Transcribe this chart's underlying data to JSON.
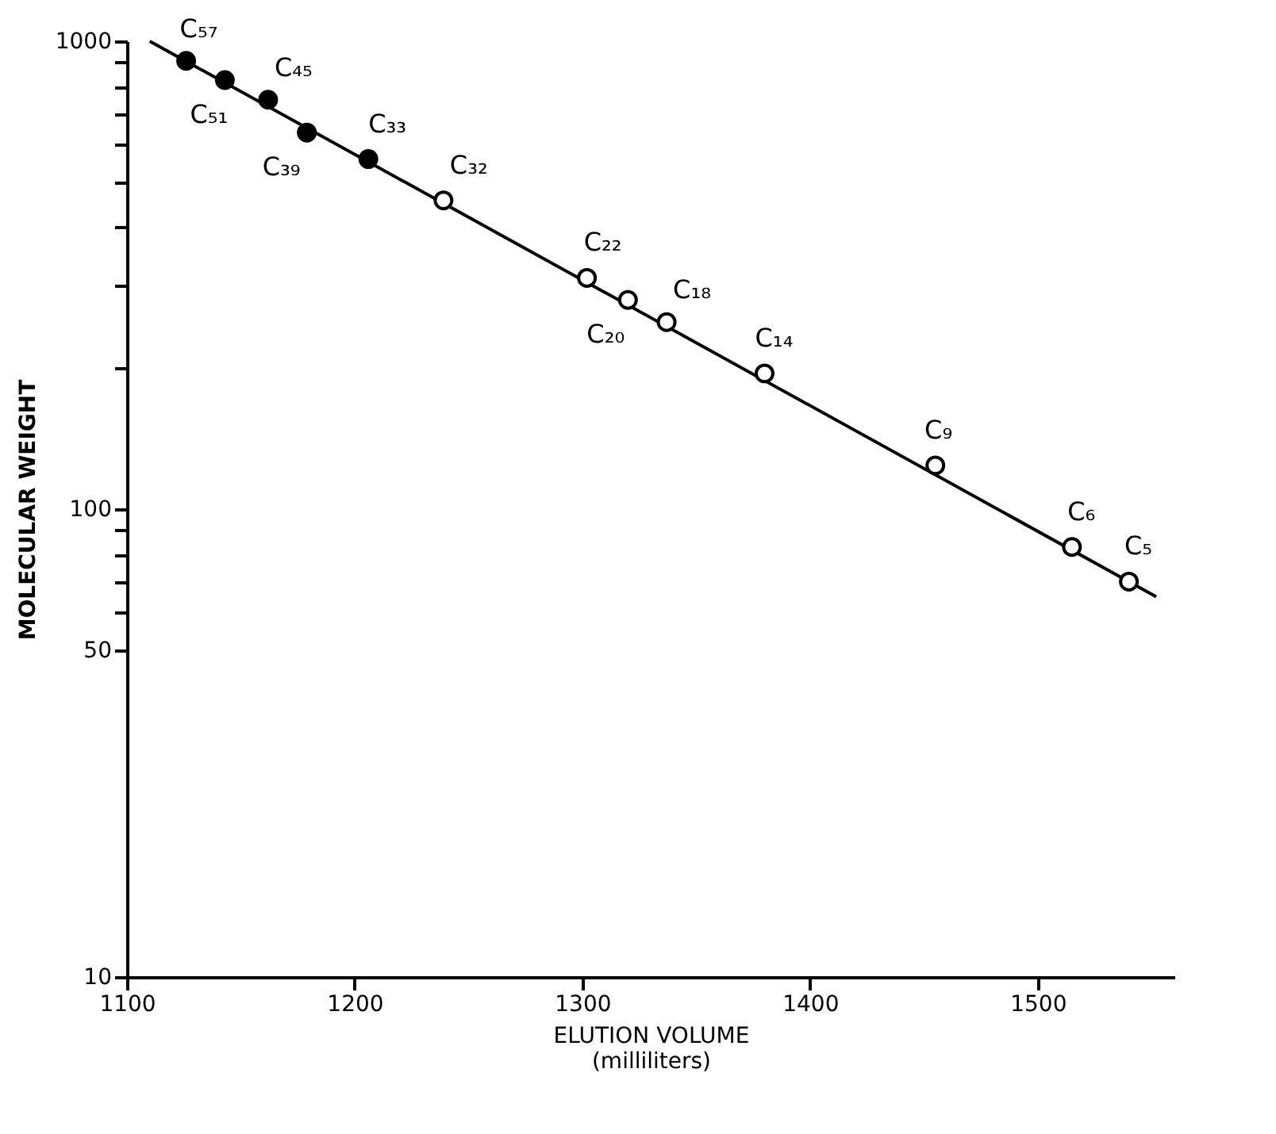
{
  "chart_data": {
    "type": "scatter",
    "xlabel": "ELUTION VOLUME\n(milliliters)",
    "ylabel": "MOLECULAR WEIGHT",
    "log": "y",
    "grid": false,
    "marker": "circle",
    "xlim": [
      1100,
      1560
    ],
    "xticks": [
      1100,
      1200,
      1300,
      1400,
      1500
    ],
    "ylim": [
      10,
      1000
    ],
    "yticks": [
      10,
      50,
      {
        "value": 60,
        "label": null
      },
      {
        "value": 70,
        "label": null
      },
      {
        "value": 80,
        "label": null
      },
      {
        "value": 90,
        "label": null
      },
      100,
      {
        "value": 200,
        "label": null
      },
      {
        "value": 300,
        "label": null
      },
      {
        "value": 400,
        "label": null
      },
      {
        "value": 500,
        "label": null
      },
      {
        "value": 600,
        "label": null
      },
      {
        "value": 700,
        "label": null
      },
      {
        "value": 800,
        "label": null
      },
      {
        "value": 900,
        "label": null
      },
      1000
    ],
    "series": [
      {
        "type": "line",
        "color": "#000000",
        "x": [
          1110,
          1552
        ],
        "values": [
          1000,
          65
        ],
        "marker": "none",
        "line_style": "solid"
      },
      {
        "color": "#000000",
        "x": [
          1126,
          1143,
          1162,
          1179,
          1206
        ],
        "values": [
          908,
          826,
          750,
          638,
          560
        ]
      },
      {
        "color": "#ffffff",
        "x": [
          1239,
          1302,
          1320,
          1337,
          1380,
          1455,
          1515,
          1540
        ],
        "values": [
          457,
          312,
          280,
          251,
          195,
          124,
          83,
          70
        ]
      }
    ],
    "annotations": [
      {
        "text": "C₅₇",
        "x": 1126,
        "y": 908
      },
      {
        "text": "C₅₁",
        "x": 1143,
        "y": 826
      },
      {
        "text": "C₄₅",
        "x": 1162,
        "y": 750
      },
      {
        "text": "C₃₉",
        "x": 1179,
        "y": 638
      },
      {
        "text": "C₃₃",
        "x": 1206,
        "y": 560
      },
      {
        "text": "C₃₂",
        "x": 1239,
        "y": 457
      },
      {
        "text": "C₂₂",
        "x": 1302,
        "y": 312
      },
      {
        "text": "C₂₀",
        "x": 1320,
        "y": 280
      },
      {
        "text": "C₁₈",
        "x": 1337,
        "y": 251
      },
      {
        "text": "C₁₄",
        "x": 1380,
        "y": 195
      },
      {
        "text": "C₉",
        "x": 1455,
        "y": 124
      },
      {
        "text": "C₆",
        "x": 1515,
        "y": 83
      },
      {
        "text": "C₅",
        "x": 1540,
        "y": 70
      }
    ]
  }
}
